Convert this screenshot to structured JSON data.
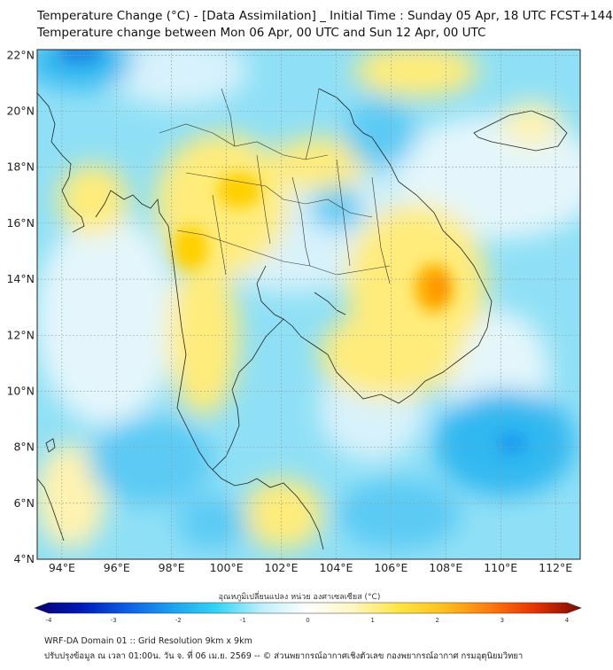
{
  "header": {
    "title_line1": "Temperature Change (°C) - [Data Assimilation] _ Initial Time : Sunday 05 Apr, 18 UTC FCST+144",
    "title_line2": "Temperature change between Mon 06 Apr, 00 UTC and Sun 12 Apr, 00 UTC"
  },
  "map": {
    "lat_labels": [
      "22°N",
      "20°N",
      "18°N",
      "16°N",
      "14°N",
      "12°N",
      "10°N",
      "8°N",
      "6°N",
      "4°N"
    ],
    "lon_labels": [
      "94°E",
      "96°E",
      "98°E",
      "100°E",
      "102°E",
      "104°E",
      "106°E",
      "108°E",
      "110°E",
      "112°E"
    ],
    "lat_range": [
      4,
      22.2
    ],
    "lon_range": [
      93.1,
      112.9
    ],
    "lat_ticks": [
      22,
      20,
      18,
      16,
      14,
      12,
      10,
      8,
      6,
      4
    ],
    "lon_ticks": [
      94,
      96,
      98,
      100,
      102,
      104,
      106,
      108,
      110,
      112
    ],
    "grid": true
  },
  "colorbar": {
    "title": "อุณหภูมิเปลี่ยนแปลง หน่วย องศาเซลเซียส (°C)",
    "tick_labels": [
      "-4",
      "-3",
      "-2",
      "-1",
      "0",
      "1",
      "2",
      "3",
      "4"
    ],
    "tick_values": [
      -4,
      -3,
      -2,
      -1,
      0,
      1,
      2,
      3,
      4
    ],
    "colors": [
      "#08006e",
      "#0018b8",
      "#0a5ce6",
      "#1aa0f0",
      "#30d6f6",
      "#bff0fb",
      "#ffffff",
      "#fff6c0",
      "#ffe640",
      "#ffbf1a",
      "#ff7a0a",
      "#e83000",
      "#7a0a00"
    ]
  },
  "footer": {
    "line1": "WRF-DA Domain 01 :: Grid Resolution 9km x 9km",
    "line2": "ปรับปรุงข้อมูล ณ เวลา 01:00น. วัน จ. ที่ 06 เม.ย. 2569 -- © ส่วนพยากรณ์อากาศเชิงตัวเลข กองพยากรณ์อากาศ กรมอุตุนิยมวิทยา"
  }
}
